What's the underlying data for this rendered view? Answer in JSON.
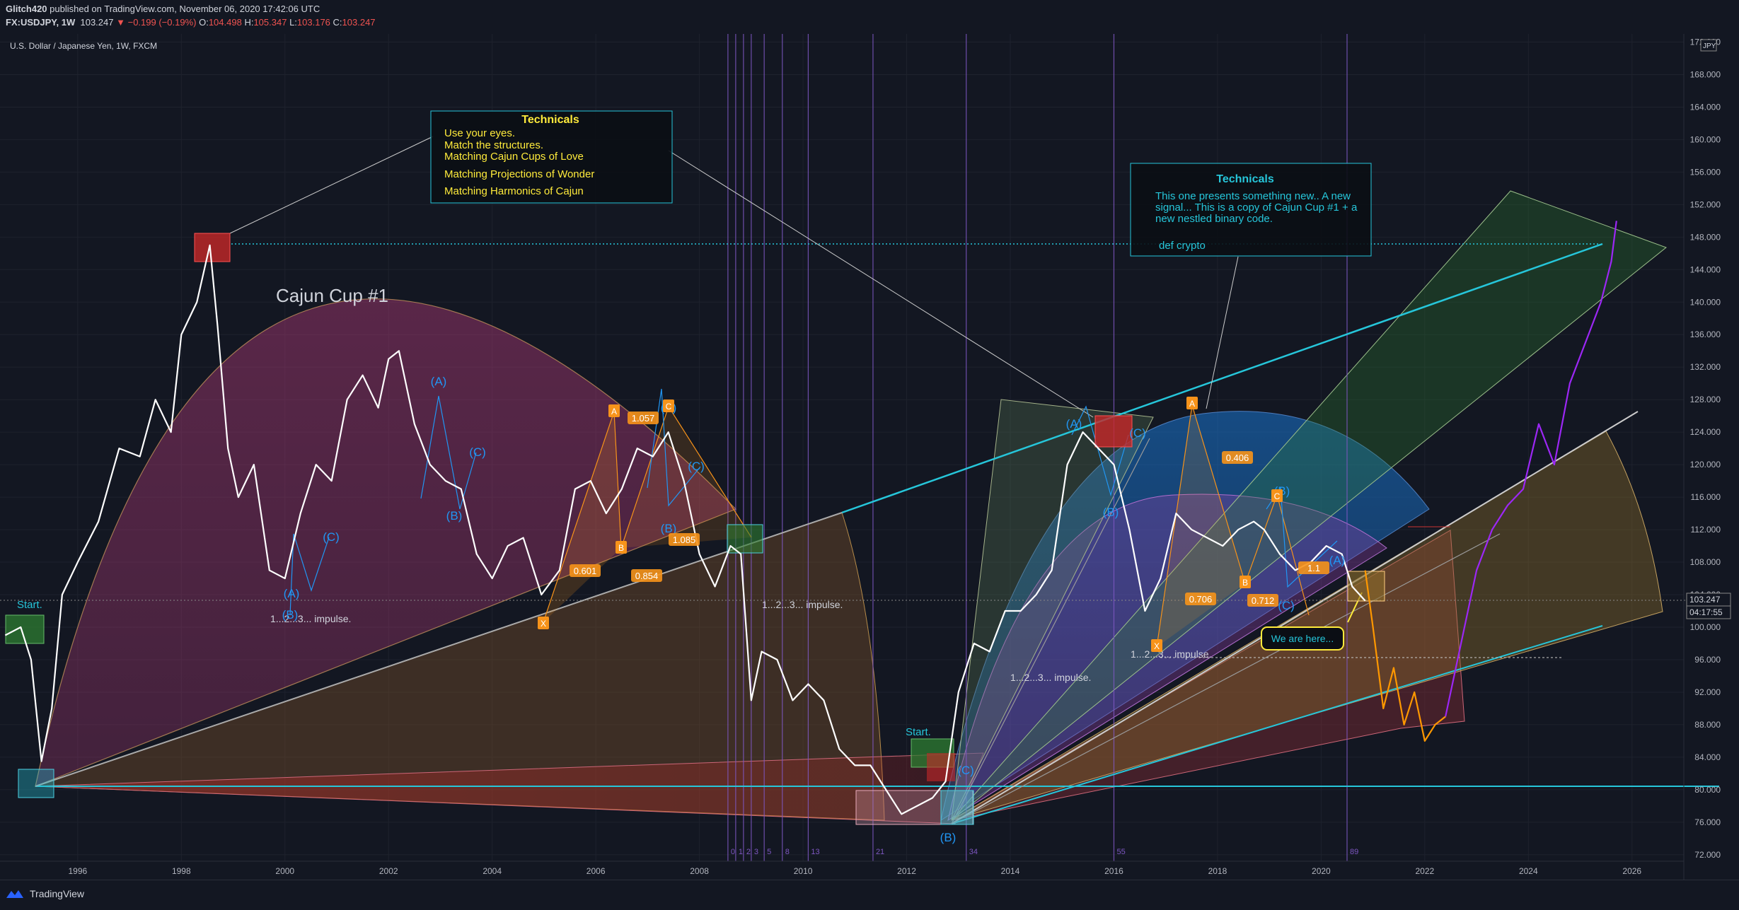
{
  "header": {
    "author": "Glitch420",
    "published": "published on TradingView.com, November 06, 2020 17:42:06 UTC",
    "symbol": "FX:USDJPY, 1W",
    "last": "103.247",
    "change": "−0.199 (−0.19%)",
    "o_label": "O:",
    "o": "104.498",
    "h_label": "H:",
    "h": "105.347",
    "l_label": "L:",
    "l": "103.176",
    "c_label": "C:",
    "c": "103.247"
  },
  "pane_title": "U.S. Dollar / Japanese Yen, 1W, FXCM",
  "currency_badge": "JPY",
  "current_price": "103.247",
  "countdown": "04:17:55",
  "footer": {
    "brand": "TradingView"
  },
  "colors": {
    "background": "#131722",
    "price_line": "#ffffff",
    "projection_purple": "#9c27f5",
    "projection_orange": "#ff9800",
    "cyan_line": "#26c6da",
    "fib_vertical": "#7e57c2",
    "label_orange": "#f7931a",
    "wave_blue": "#2196f3"
  },
  "chart_data": {
    "type": "line",
    "x_axis": {
      "ticks": [
        "1996",
        "1998",
        "2000",
        "2002",
        "2004",
        "2006",
        "2008",
        "2010",
        "2012",
        "2014",
        "2016",
        "2018",
        "2020",
        "2022",
        "2024",
        "2026"
      ],
      "range": [
        1994.5,
        2027.0
      ]
    },
    "y_axis": {
      "ticks": [
        "72.000",
        "76.000",
        "80.000",
        "84.000",
        "88.000",
        "92.000",
        "96.000",
        "100.000",
        "104.000",
        "108.000",
        "112.000",
        "116.000",
        "120.000",
        "124.000",
        "128.000",
        "132.000",
        "136.000",
        "140.000",
        "144.000",
        "148.000",
        "152.000",
        "156.000",
        "160.000",
        "164.000",
        "168.000",
        "172.000"
      ],
      "range": [
        71.2,
        173.0
      ]
    },
    "series": [
      {
        "x": [
          1994.6,
          1994.9,
          1995.1,
          1995.3,
          1995.5,
          1995.7,
          1996.0,
          1996.4,
          1996.8,
          1997.2,
          1997.5,
          1997.8,
          1998.0,
          1998.3,
          1998.55,
          1998.7,
          1998.9,
          1999.1,
          1999.4,
          1999.7,
          2000.0,
          2000.3,
          2000.6,
          2000.9,
          2001.2,
          2001.5,
          2001.8,
          2002.0,
          2002.2,
          2002.5,
          2002.8,
          2003.1,
          2003.4,
          2003.7,
          2004.0,
          2004.3,
          2004.6,
          2004.95,
          2005.3,
          2005.6,
          2005.9,
          2006.2,
          2006.5,
          2006.8,
          2007.1,
          2007.4,
          2007.7,
          2008.0,
          2008.3,
          2008.6,
          2008.8,
          2009.0,
          2009.2,
          2009.5,
          2009.8,
          2010.1,
          2010.4,
          2010.7,
          2011.0,
          2011.3,
          2011.6,
          2011.9,
          2012.2,
          2012.5,
          2012.75,
          2013.0,
          2013.3,
          2013.6,
          2013.9,
          2014.2,
          2014.5,
          2014.8,
          2015.1,
          2015.4,
          2015.7,
          2016.0,
          2016.3,
          2016.6,
          2016.9,
          2017.2,
          2017.5,
          2017.8,
          2018.1,
          2018.4,
          2018.7,
          2018.9,
          2019.2,
          2019.5,
          2019.8,
          2020.1,
          2020.4,
          2020.6,
          2020.85
        ],
        "values": [
          99,
          100,
          96,
          83.5,
          90,
          104,
          108,
          113,
          122,
          121,
          128,
          124,
          136,
          140,
          147,
          137,
          122,
          116,
          120,
          107,
          106,
          114,
          120,
          118,
          128,
          131,
          127,
          133,
          134,
          125,
          120,
          118,
          117,
          109,
          106,
          110,
          111,
          104,
          107,
          117,
          118,
          114,
          117,
          122,
          121,
          124,
          118,
          109,
          105,
          110,
          109,
          91,
          97,
          96,
          91,
          93,
          91,
          85,
          83,
          83,
          80,
          77,
          78,
          79,
          81,
          92,
          98,
          97,
          102,
          102,
          104,
          107,
          120,
          124,
          122,
          120,
          112,
          102,
          106,
          114,
          112,
          111,
          110,
          112,
          113,
          112,
          109,
          107,
          108,
          110,
          109,
          105,
          103.25
        ],
        "color": "#ffffff"
      },
      {
        "x": [
          2020.85,
          2021.0,
          2021.2,
          2021.4,
          2021.6,
          2021.8,
          2022.0,
          2022.2,
          2022.4
        ],
        "values": [
          107,
          100,
          90,
          95,
          88,
          92,
          86,
          88,
          89
        ],
        "color": "#ff9800"
      },
      {
        "x": [
          2022.4,
          2022.7,
          2023.0,
          2023.3,
          2023.6,
          2023.9,
          2024.2,
          2024.5,
          2024.8,
          2025.1,
          2025.4,
          2025.6,
          2025.7
        ],
        "values": [
          89,
          98,
          107,
          112,
          115,
          117,
          125,
          120,
          130,
          135,
          140,
          145,
          150
        ],
        "color": "#9c27f5"
      }
    ],
    "annotations": {
      "box1_title": "Technicals",
      "box1_lines": [
        "Use your eyes.",
        "Match the structures.",
        "Matching Cajun Cups of Love",
        "Matching Projections of Wonder",
        "Matching Harmonics of Cajun"
      ],
      "box2_title": "Technicals",
      "box2_lines": [
        "This one presents something new.. A new",
        "signal... This is a copy of Cajun Cup #1  +  a",
        "new nestled binary code."
      ],
      "box2_code": "def crypto",
      "cup_label": "Cajun Cup #1",
      "start1": "Start.",
      "start2": "Start.",
      "impulse1": "1...2...3... impulse.",
      "impulse2": "1...2...3... impulse.",
      "impulse3": "1...2...3... impulse.",
      "impulse4": "1...2...3... impulse.",
      "we_are_here": "We are here...",
      "waves": [
        "(A)",
        "(B)",
        "(C)",
        "(A)",
        "(B)",
        "(C)",
        "(A)",
        "(B)",
        "(C)",
        "(A)",
        "(B)",
        "(C)",
        "(B)",
        "(C)",
        "(A)",
        "(B)",
        "(C)"
      ],
      "fib_labels": [
        "1.057",
        "1.085",
        "0.601",
        "0.854",
        "0.406",
        "0.706",
        "0.712",
        "1.1"
      ],
      "pattern_points": [
        "A",
        "B",
        "C",
        "X",
        "A",
        "C",
        "B",
        "X"
      ],
      "fib_numbers": [
        "0",
        "1",
        "2",
        "3",
        "5",
        "8",
        "13",
        "21",
        "34",
        "55",
        "89"
      ]
    }
  }
}
